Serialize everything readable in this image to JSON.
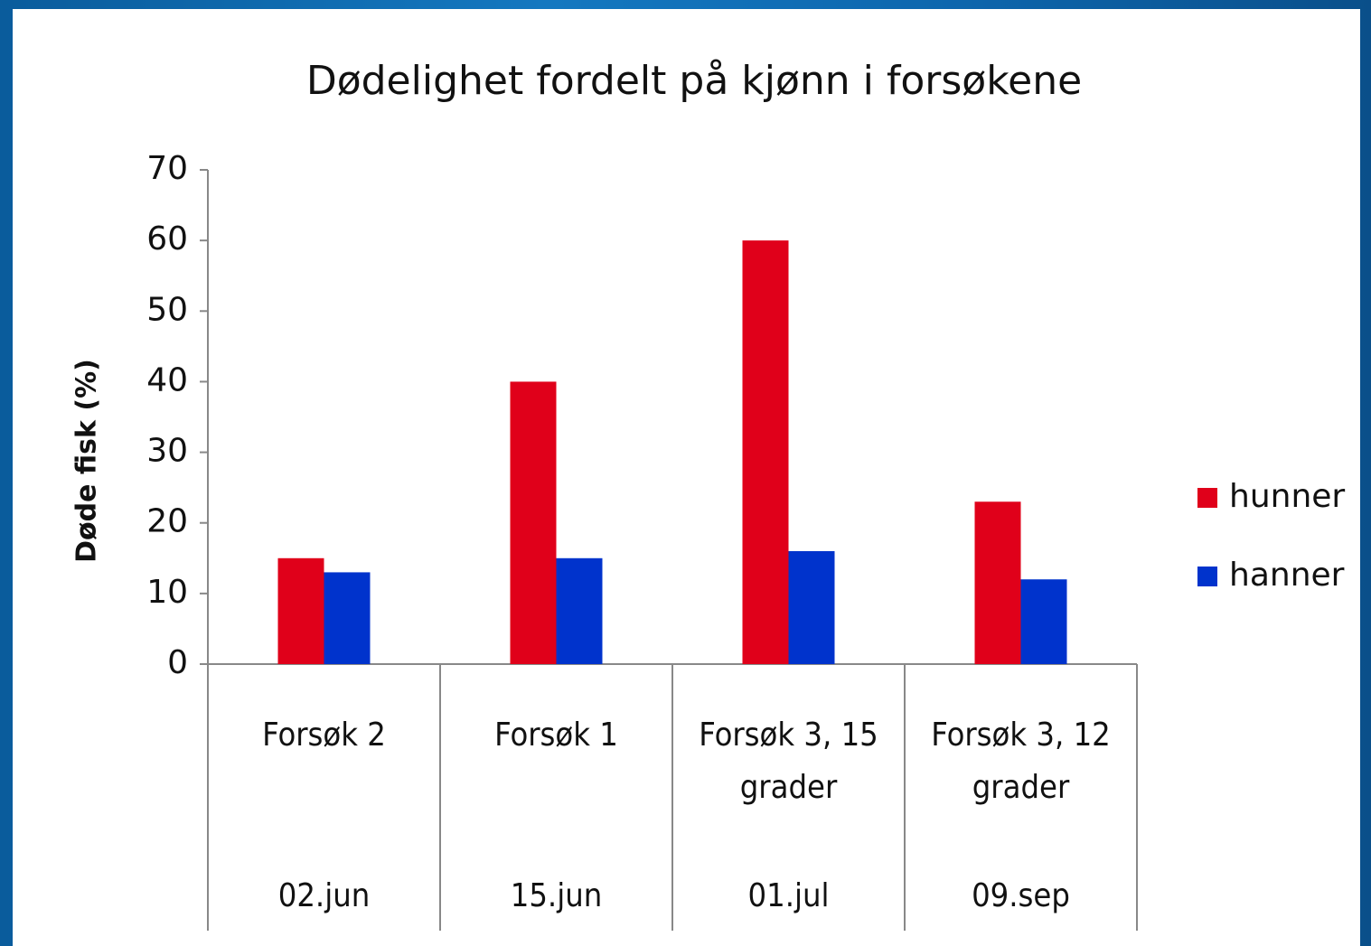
{
  "chart_data": {
    "type": "bar",
    "title": "Dødelighet fordelt på kjønn i forsøkene",
    "ylabel": "Døde fisk (%)",
    "categories": [
      "Forsøk 2",
      "Forsøk 1",
      "Forsøk 3, 15 grader",
      "Forsøk 3, 12 grader"
    ],
    "dates": [
      "02.jun",
      "15.jun",
      "01.jul",
      "09.sep"
    ],
    "series": [
      {
        "name": "hunner",
        "color": "#e0001a",
        "values": [
          15,
          40,
          60,
          23
        ]
      },
      {
        "name": "hanner",
        "color": "#0033cc",
        "values": [
          13,
          15,
          16,
          12
        ]
      }
    ],
    "ylim": [
      0,
      70
    ],
    "yticks": [
      0,
      10,
      20,
      30,
      40,
      50,
      60,
      70
    ],
    "legend": "right"
  }
}
